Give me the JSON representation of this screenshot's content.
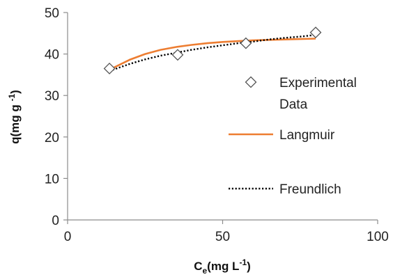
{
  "chart_data": {
    "type": "scatter",
    "x_ticks": [
      "0",
      "50",
      "100"
    ],
    "y_ticks": [
      "0",
      "10",
      "20",
      "30",
      "40",
      "50"
    ],
    "xlim": [
      0,
      100
    ],
    "ylim": [
      0,
      50
    ],
    "xlabel": {
      "main": "C",
      "sub": "e",
      "rest": "(mg L",
      "sup": "-1",
      "end": ")"
    },
    "ylabel": {
      "main": "q(mg g ",
      "sup": "-1",
      "end": ")"
    },
    "grid": false,
    "legend_position": "right",
    "series": [
      {
        "name": "Experimental Data",
        "name_lines": [
          "Experimental",
          "Data"
        ],
        "kind": "markers",
        "marker": "diamond",
        "color": "#555555",
        "x": [
          13.5,
          35.5,
          57.5,
          80
        ],
        "y": [
          36.5,
          39.8,
          42.6,
          45.2
        ]
      },
      {
        "name": "Langmuir",
        "name_lines": [
          "Langmuir"
        ],
        "kind": "line",
        "style": "solid",
        "color": "#ED7D31",
        "x": [
          13.5,
          20,
          25,
          30,
          35,
          40,
          45,
          50,
          55,
          60,
          65,
          70,
          75,
          80
        ],
        "y": [
          36.2,
          38.6,
          40.0,
          41.0,
          41.7,
          42.2,
          42.6,
          42.9,
          43.1,
          43.3,
          43.4,
          43.5,
          43.6,
          43.7
        ]
      },
      {
        "name": "Freundlich",
        "name_lines": [
          "Freundlich"
        ],
        "kind": "line",
        "style": "dotted",
        "color": "#000000",
        "x": [
          13.5,
          20,
          25,
          30,
          35,
          40,
          45,
          50,
          55,
          60,
          65,
          70,
          75,
          80
        ],
        "y": [
          35.9,
          37.6,
          38.7,
          39.6,
          40.3,
          41.0,
          41.6,
          42.1,
          42.6,
          43.0,
          43.5,
          43.9,
          44.2,
          44.6
        ]
      }
    ]
  }
}
